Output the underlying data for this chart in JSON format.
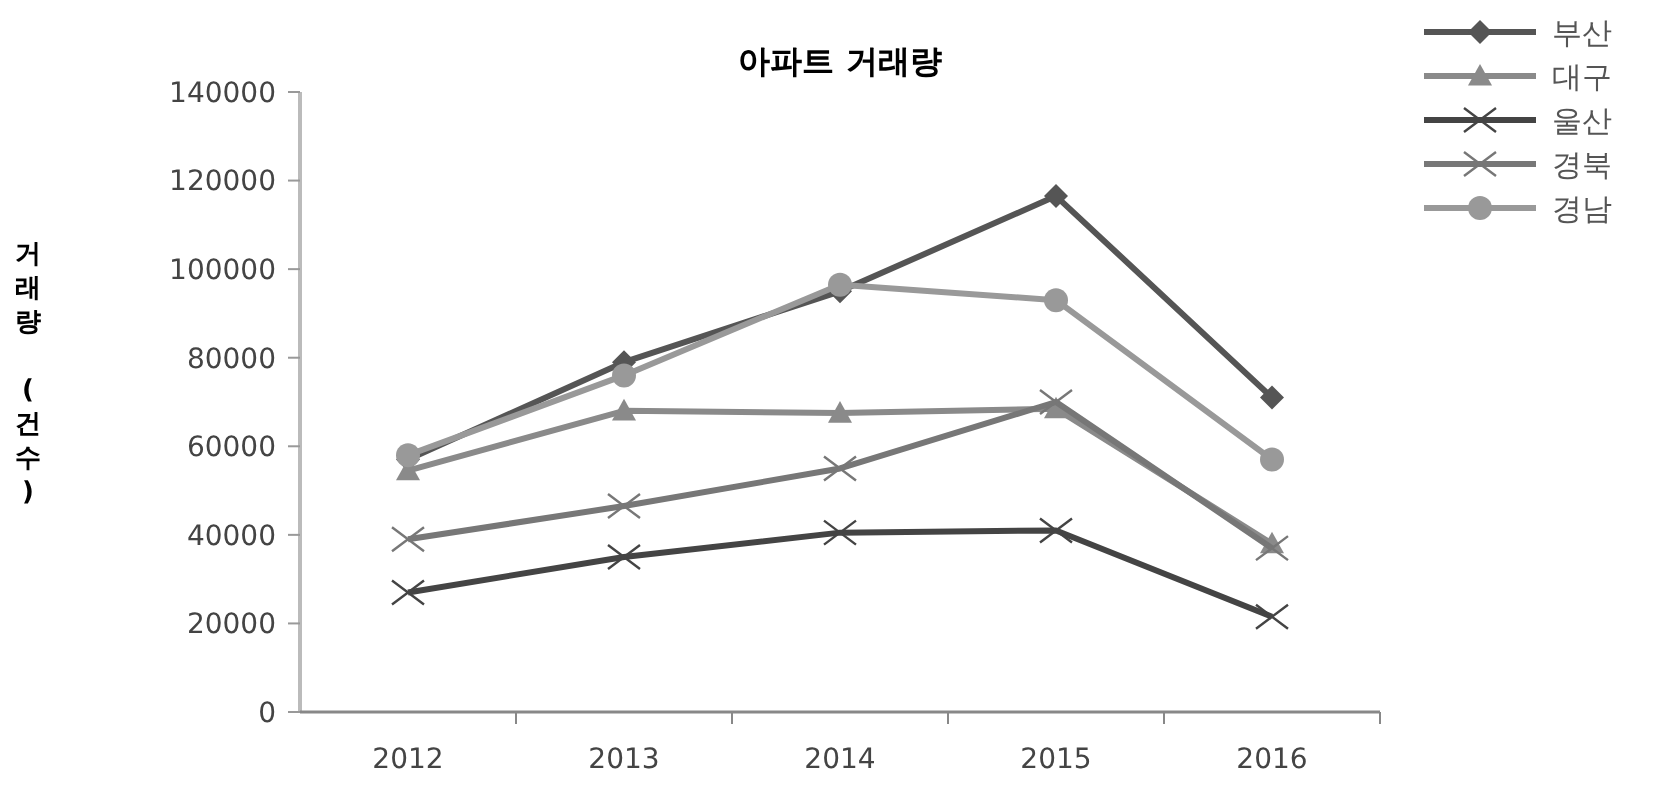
{
  "chart_data": {
    "type": "line",
    "title": "아파트 거래량",
    "ylabel": "거래량 (건수)",
    "categories": [
      "2012",
      "2013",
      "2014",
      "2015",
      "2016"
    ],
    "series": [
      {
        "name": "부산",
        "color": "#555555",
        "marker": "diamond",
        "values": [
          57000,
          79000,
          95000,
          116500,
          71000
        ]
      },
      {
        "name": "대구",
        "color": "#8a8a8a",
        "marker": "triangle",
        "values": [
          54500,
          68000,
          67500,
          68500,
          38000
        ]
      },
      {
        "name": "울산",
        "color": "#444444",
        "marker": "cross",
        "values": [
          27000,
          35000,
          40500,
          41000,
          21500
        ]
      },
      {
        "name": "경북",
        "color": "#777777",
        "marker": "cross",
        "values": [
          39000,
          46500,
          55000,
          70000,
          37000
        ]
      },
      {
        "name": "경남",
        "color": "#999999",
        "marker": "circle",
        "values": [
          58000,
          76000,
          96500,
          93000,
          57000
        ]
      }
    ],
    "ylim": [
      0,
      140000
    ],
    "yticks": [
      0,
      20000,
      40000,
      60000,
      80000,
      100000,
      120000,
      140000
    ],
    "grid": false,
    "legend": "top right",
    "line_style": "solid"
  }
}
